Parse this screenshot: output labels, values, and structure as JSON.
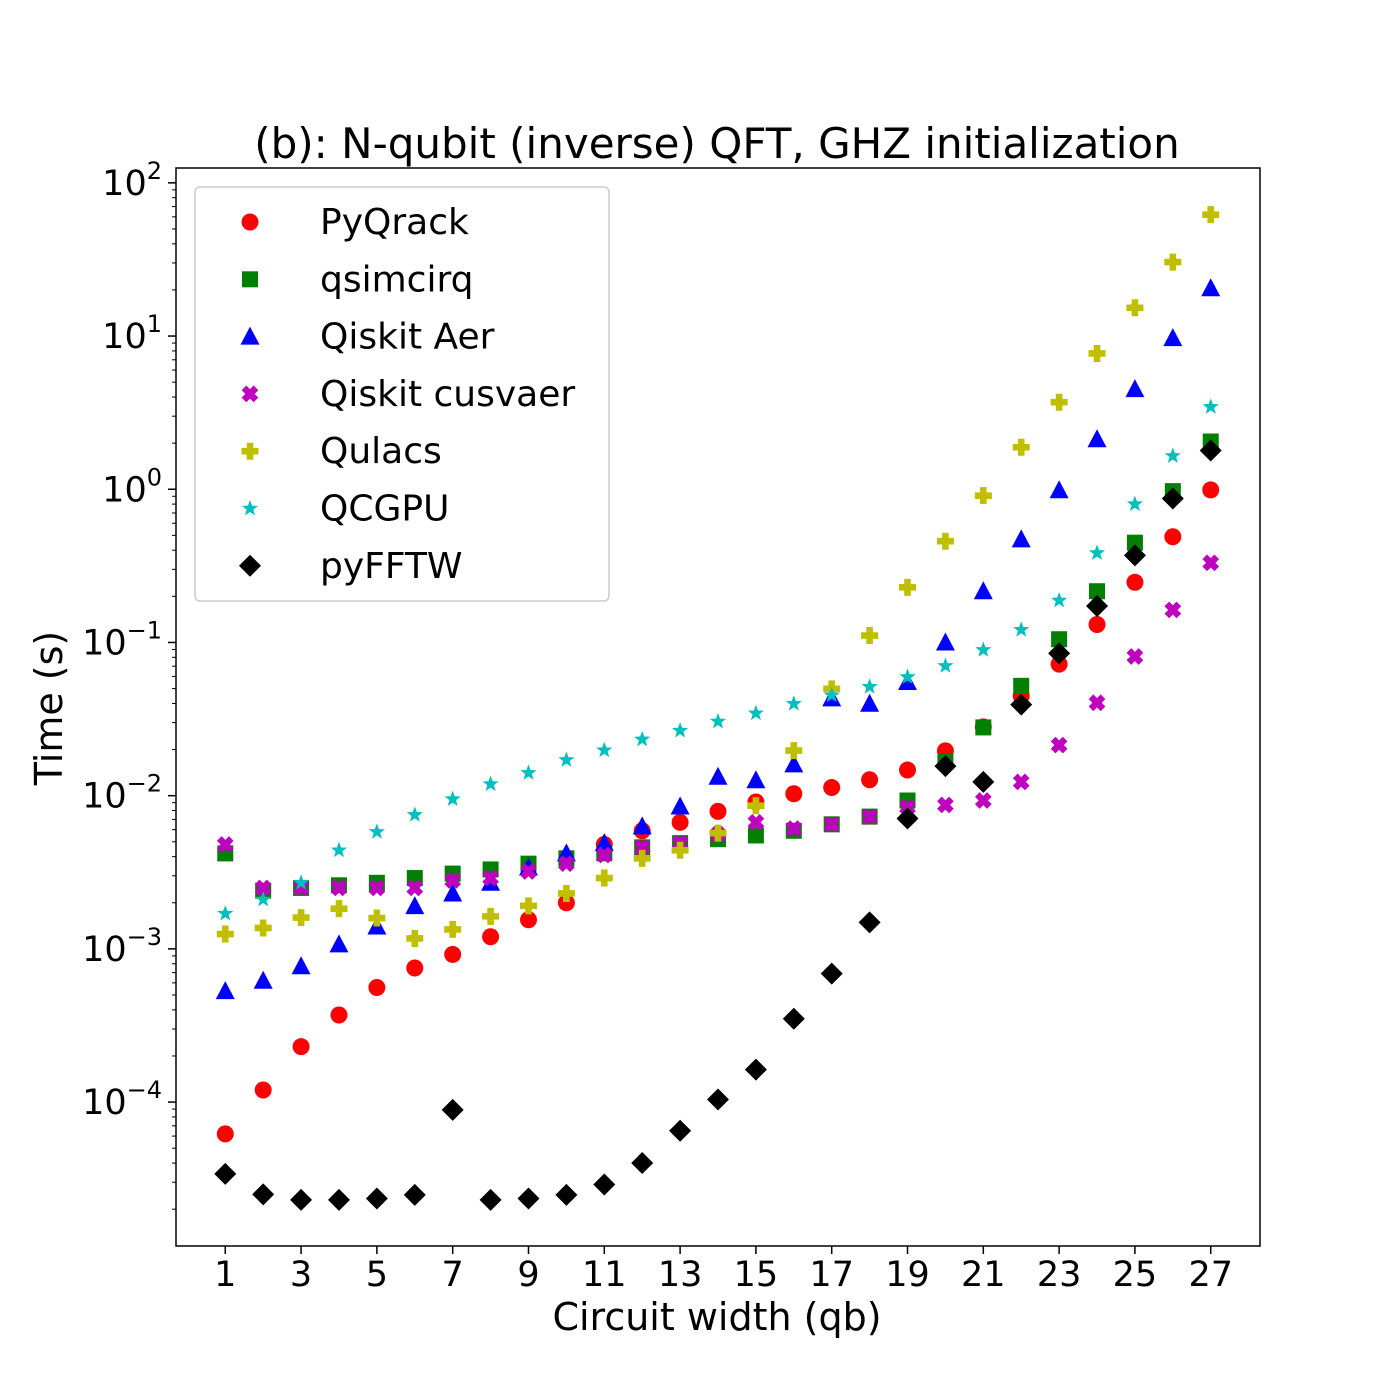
{
  "chart_data": {
    "type": "scatter",
    "title": "(b): N-qubit (inverse) QFT, GHZ initialization",
    "xlabel": "Circuit width (qb)",
    "ylabel": "Time (s)",
    "xscale": "linear",
    "yscale": "log",
    "xlim": [
      -0.3,
      28.3
    ],
    "ylim": [
      1.15e-05,
      125
    ],
    "x_ticks": [
      1,
      3,
      5,
      7,
      9,
      11,
      13,
      15,
      17,
      19,
      21,
      23,
      25,
      27
    ],
    "x_tick_labels": [
      "1",
      "3",
      "5",
      "7",
      "9",
      "11",
      "13",
      "15",
      "17",
      "19",
      "21",
      "23",
      "25",
      "27"
    ],
    "y_ticks": [
      {
        "value": 0.0001,
        "base": "10",
        "exp": "−4"
      },
      {
        "value": 0.001,
        "base": "10",
        "exp": "−3"
      },
      {
        "value": 0.01,
        "base": "10",
        "exp": "−2"
      },
      {
        "value": 0.1,
        "base": "10",
        "exp": "−1"
      },
      {
        "value": 1,
        "base": "10",
        "exp": "0"
      },
      {
        "value": 10,
        "base": "10",
        "exp": "1"
      },
      {
        "value": 100,
        "base": "10",
        "exp": "2"
      }
    ],
    "grid": false,
    "legend_position": "top-left",
    "x": [
      1,
      2,
      3,
      4,
      5,
      6,
      7,
      8,
      9,
      10,
      11,
      12,
      13,
      14,
      15,
      16,
      17,
      18,
      19,
      20,
      21,
      22,
      23,
      24,
      25,
      26,
      27
    ],
    "series": [
      {
        "name": "PyQrack",
        "marker": "circle",
        "color": "#ff0000",
        "values": [
          6.2e-05,
          0.00012,
          0.00023,
          0.00037,
          0.00056,
          0.00075,
          0.00092,
          0.0012,
          0.00155,
          0.002,
          0.0048,
          0.0059,
          0.0067,
          0.0079,
          0.0091,
          0.0103,
          0.0113,
          0.0127,
          0.0147,
          0.0196,
          0.0281,
          0.0448,
          0.0722,
          0.131,
          0.247,
          0.49,
          0.99
        ]
      },
      {
        "name": "qsimcirq",
        "marker": "square",
        "color": "#008000",
        "values": [
          0.0042,
          0.0024,
          0.0025,
          0.0026,
          0.0027,
          0.0029,
          0.0031,
          0.0033,
          0.0036,
          0.0039,
          0.0042,
          0.0046,
          0.0049,
          0.0052,
          0.0055,
          0.0059,
          0.0065,
          0.0073,
          0.0093,
          0.0167,
          0.0279,
          0.0521,
          0.105,
          0.216,
          0.448,
          0.972,
          2.05
        ]
      },
      {
        "name": "Qiskit Aer",
        "marker": "triangle",
        "color": "#0000ff",
        "values": [
          0.00053,
          0.00062,
          0.00077,
          0.00107,
          0.0014,
          0.0019,
          0.0023,
          0.0027,
          0.0034,
          0.0042,
          0.0049,
          0.0063,
          0.0085,
          0.0133,
          0.0126,
          0.016,
          0.0432,
          0.0398,
          0.0552,
          0.1,
          0.216,
          0.471,
          0.985,
          2.12,
          4.5,
          9.7,
          20.5
        ]
      },
      {
        "name": "Qiskit cusvaer",
        "marker": "x",
        "color": "#bf00bf",
        "values": [
          0.0048,
          0.0025,
          0.0025,
          0.0025,
          0.0025,
          0.0025,
          0.0028,
          0.0029,
          0.0032,
          0.0036,
          0.0041,
          0.0046,
          0.0049,
          0.0056,
          0.0067,
          0.0061,
          0.0065,
          0.0073,
          0.0084,
          0.0087,
          0.0093,
          0.0123,
          0.0214,
          0.0404,
          0.081,
          0.163,
          0.331
        ]
      },
      {
        "name": "Qulacs",
        "marker": "plus",
        "color": "#bfbf00",
        "values": [
          0.00125,
          0.00137,
          0.0016,
          0.00183,
          0.00159,
          0.00117,
          0.00134,
          0.00163,
          0.00191,
          0.0023,
          0.0029,
          0.0039,
          0.0044,
          0.0057,
          0.0086,
          0.0197,
          0.0498,
          0.111,
          0.229,
          0.458,
          0.908,
          1.88,
          3.7,
          7.7,
          15.3,
          30.4,
          62
        ]
      },
      {
        "name": "QCGPU",
        "marker": "star",
        "color": "#00bfbf",
        "values": [
          0.0017,
          0.0021,
          0.0027,
          0.0044,
          0.0058,
          0.0075,
          0.0095,
          0.0119,
          0.0141,
          0.0171,
          0.0198,
          0.0233,
          0.0266,
          0.0305,
          0.0345,
          0.0398,
          0.0452,
          0.0514,
          0.0595,
          0.0703,
          0.0894,
          0.121,
          0.188,
          0.384,
          0.8,
          1.65,
          3.45
        ]
      },
      {
        "name": "pyFFTW",
        "marker": "diamond",
        "color": "#000000",
        "values": [
          3.4e-05,
          2.5e-05,
          2.3e-05,
          2.3e-05,
          2.35e-05,
          2.48e-05,
          8.9e-05,
          2.3e-05,
          2.35e-05,
          2.48e-05,
          2.9e-05,
          4e-05,
          6.5e-05,
          0.000104,
          0.000163,
          0.00035,
          0.00069,
          0.00149,
          0.0071,
          0.0156,
          0.0123,
          0.0393,
          0.0849,
          0.173,
          0.37,
          0.87,
          1.79
        ]
      }
    ]
  }
}
